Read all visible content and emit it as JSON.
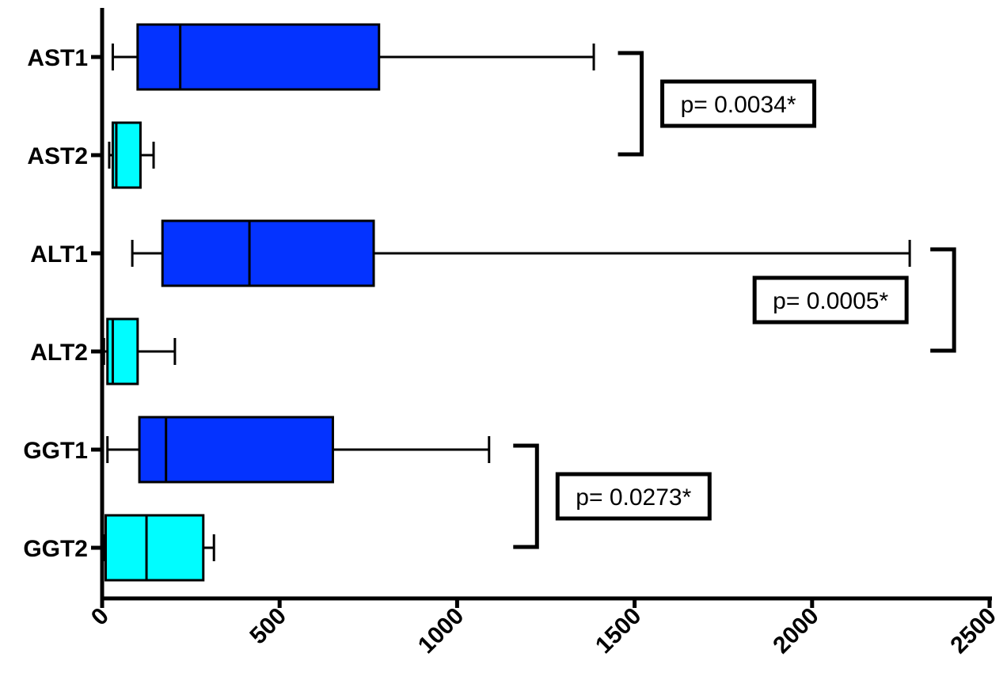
{
  "chart_data": {
    "type": "boxplot",
    "orientation": "horizontal",
    "title": "",
    "xlabel": "",
    "ylabel": "",
    "xlim": [
      0,
      2500
    ],
    "xticks": [
      0,
      500,
      1000,
      1500,
      2000,
      2500
    ],
    "xtick_labels": [
      "0",
      "500",
      "1000",
      "1500",
      "2000",
      "2500"
    ],
    "categories": [
      "AST1",
      "AST2",
      "ALT1",
      "ALT2",
      "GGT1",
      "GGT2"
    ],
    "boxes": [
      {
        "label": "AST1",
        "min": 30,
        "q1": 100,
        "median": 220,
        "q3": 780,
        "max": 1385,
        "color": "#0433ff"
      },
      {
        "label": "AST2",
        "min": 20,
        "q1": 30,
        "median": 40,
        "q3": 108,
        "max": 145,
        "color": "#00fdff"
      },
      {
        "label": "ALT1",
        "min": 85,
        "q1": 170,
        "median": 415,
        "q3": 765,
        "max": 2275,
        "color": "#0433ff"
      },
      {
        "label": "ALT2",
        "min": 5,
        "q1": 15,
        "median": 30,
        "q3": 100,
        "max": 205,
        "color": "#00fdff"
      },
      {
        "label": "GGT1",
        "min": 15,
        "q1": 105,
        "median": 180,
        "q3": 650,
        "max": 1090,
        "color": "#0433ff"
      },
      {
        "label": "GGT2",
        "min": 5,
        "q1": 10,
        "median": 125,
        "q3": 285,
        "max": 315,
        "color": "#00fdff"
      }
    ],
    "comparisons": [
      {
        "between": [
          "AST1",
          "AST2"
        ],
        "label": "p= 0.0034*",
        "bracket_x": 1520
      },
      {
        "between": [
          "ALT1",
          "ALT2"
        ],
        "label": "p= 0.0005*",
        "bracket_x": 2400
      },
      {
        "between": [
          "GGT1",
          "GGT2"
        ],
        "label": "p= 0.0273*",
        "bracket_x": 1225
      }
    ],
    "grid": false,
    "legend": "none"
  }
}
